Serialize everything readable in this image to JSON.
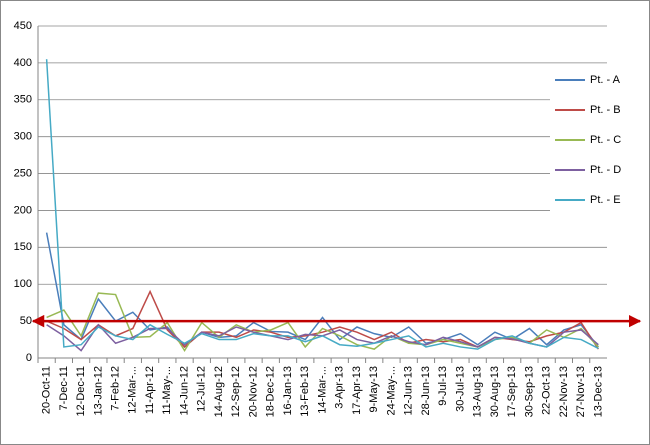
{
  "chart_data": {
    "type": "line",
    "categories": [
      "20-Oct-11",
      "7-Dec-11",
      "12-Dec-11",
      "13-Jan-12",
      "7-Feb-12",
      "12-Mar-...",
      "11-Apr-12",
      "11-May-...",
      "14-Jun-12",
      "12-Jul-12",
      "14-Aug-12",
      "12-Sep-12",
      "20-Nov-12",
      "18-Dec-12",
      "16-Jan-13",
      "13-Feb-13",
      "14-Mar-...",
      "3-Apr-13",
      "17-Apr-13",
      "9-May-13",
      "24-May-...",
      "12-Jun-13",
      "28-Jun-13",
      "9-Jul-13",
      "30-Jul-13",
      "13-Aug-13",
      "30-Aug-13",
      "17-Sep-13",
      "30-Sep-13",
      "22-Oct-13",
      "22-Nov-13",
      "27-Nov-13",
      "13-Dec-13"
    ],
    "series": [
      {
        "name": "Pt. - A",
        "color": "#4a7ebb",
        "values": [
          170,
          45,
          25,
          80,
          50,
          62,
          38,
          42,
          15,
          35,
          28,
          30,
          48,
          36,
          35,
          25,
          55,
          25,
          42,
          33,
          28,
          42,
          20,
          25,
          33,
          18,
          35,
          25,
          40,
          18,
          38,
          45,
          15
        ]
      },
      {
        "name": "Pt. - B",
        "color": "#be4b48",
        "values": [
          50,
          40,
          25,
          45,
          30,
          40,
          90,
          38,
          15,
          35,
          35,
          28,
          38,
          35,
          28,
          30,
          35,
          42,
          35,
          25,
          35,
          20,
          25,
          22,
          25,
          15,
          28,
          25,
          22,
          30,
          35,
          48,
          12
        ]
      },
      {
        "name": "Pt. - C",
        "color": "#98b954",
        "values": [
          55,
          65,
          30,
          88,
          86,
          28,
          29,
          48,
          10,
          48,
          28,
          45,
          35,
          38,
          48,
          15,
          40,
          30,
          18,
          12,
          30,
          20,
          18,
          25,
          20,
          15,
          25,
          28,
          20,
          38,
          28,
          40,
          15
        ]
      },
      {
        "name": "Pt. - D",
        "color": "#7d60a0",
        "values": [
          45,
          30,
          10,
          45,
          20,
          28,
          40,
          40,
          18,
          35,
          30,
          42,
          35,
          30,
          25,
          32,
          30,
          38,
          25,
          20,
          30,
          22,
          18,
          28,
          22,
          15,
          28,
          26,
          20,
          15,
          35,
          38,
          18
        ]
      },
      {
        "name": "Pt. - E",
        "color": "#46aac5",
        "values": [
          405,
          15,
          18,
          42,
          30,
          25,
          45,
          32,
          20,
          33,
          25,
          25,
          33,
          30,
          30,
          22,
          30,
          18,
          16,
          20,
          25,
          30,
          15,
          20,
          15,
          12,
          25,
          30,
          20,
          15,
          28,
          25,
          13
        ]
      }
    ],
    "ylim": [
      0,
      450
    ],
    "yticks": [
      0,
      50,
      100,
      150,
      200,
      250,
      300,
      350,
      400,
      450
    ],
    "grid": true,
    "reference_line": {
      "value": 50,
      "color": "#c00000"
    },
    "legend": "right"
  }
}
